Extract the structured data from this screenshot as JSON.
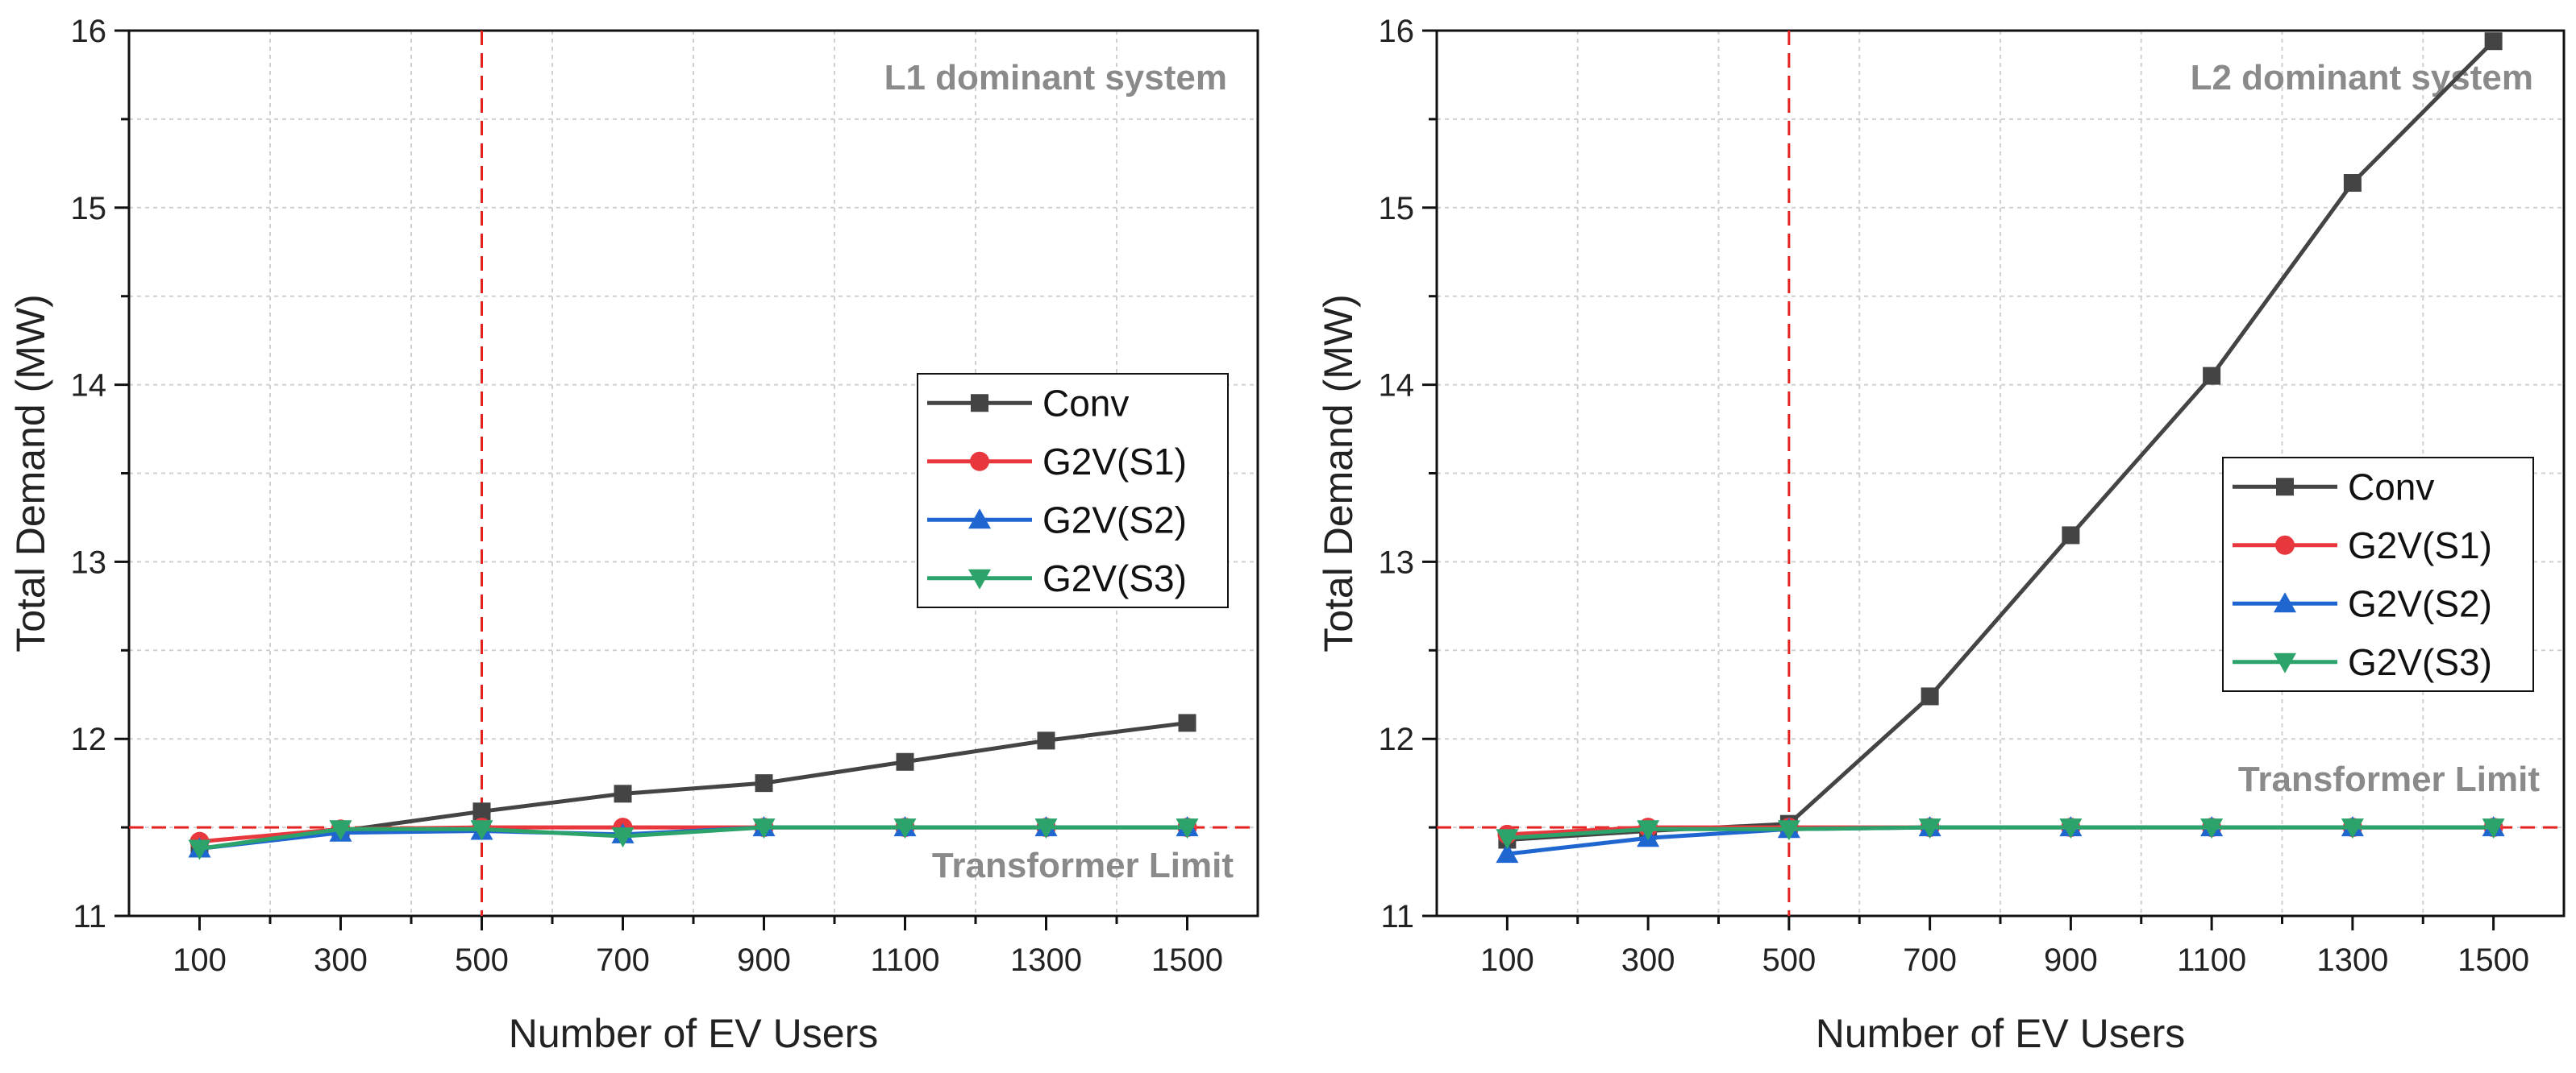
{
  "colors": {
    "Conv": "#444444",
    "G2V(S1)": "#e8383d",
    "G2V(S2)": "#1f66d1",
    "G2V(S3)": "#2ca36b",
    "reference_line": "#e52222",
    "grid": "#d0d0d0",
    "annotation": "#8a8a8a"
  },
  "chart_data": [
    {
      "type": "line",
      "annotation": "L1 dominant system",
      "limit_label": "Transformer Limit",
      "xlabel": "Number of EV Users",
      "ylabel": "Total Demand (MW)",
      "x": [
        100,
        300,
        500,
        700,
        900,
        1100,
        1300,
        1500
      ],
      "x_ticks": [
        "100",
        "300",
        "500",
        "700",
        "900",
        "1100",
        "1300",
        "1500"
      ],
      "y_ticks": [
        "11",
        "12",
        "13",
        "14",
        "15",
        "16"
      ],
      "xlim": [
        0,
        1600
      ],
      "ylim": [
        11,
        16
      ],
      "grid": true,
      "legend_position": "center-right",
      "reference_lines": {
        "horizontal_y": 11.5,
        "vertical_x": 500
      },
      "series": [
        {
          "name": "Conv",
          "marker": "square",
          "values": [
            11.38,
            11.48,
            11.59,
            11.69,
            11.75,
            11.87,
            11.99,
            12.09
          ]
        },
        {
          "name": "G2V(S1)",
          "marker": "circle",
          "values": [
            11.42,
            11.49,
            11.5,
            11.5,
            11.5,
            11.5,
            11.5,
            11.5
          ]
        },
        {
          "name": "G2V(S2)",
          "marker": "triangle-up",
          "values": [
            11.38,
            11.47,
            11.48,
            11.46,
            11.5,
            11.5,
            11.5,
            11.5
          ]
        },
        {
          "name": "G2V(S3)",
          "marker": "triangle-down",
          "values": [
            11.38,
            11.49,
            11.49,
            11.45,
            11.5,
            11.5,
            11.5,
            11.5
          ]
        }
      ]
    },
    {
      "type": "line",
      "annotation": "L2 dominant system",
      "limit_label": "Transformer Limit",
      "xlabel": "Number of EV Users",
      "ylabel": "Total Demand (MW)",
      "x": [
        100,
        300,
        500,
        700,
        900,
        1100,
        1300,
        1500
      ],
      "x_ticks": [
        "100",
        "300",
        "500",
        "700",
        "900",
        "1100",
        "1300",
        "1500"
      ],
      "y_ticks": [
        "11",
        "12",
        "13",
        "14",
        "15",
        "16"
      ],
      "xlim": [
        0,
        1600
      ],
      "ylim": [
        11,
        16
      ],
      "grid": true,
      "legend_position": "center-right",
      "reference_lines": {
        "horizontal_y": 11.5,
        "vertical_x": 500
      },
      "series": [
        {
          "name": "Conv",
          "marker": "square",
          "values": [
            11.43,
            11.48,
            11.52,
            12.24,
            13.15,
            14.05,
            15.14,
            15.94
          ]
        },
        {
          "name": "G2V(S1)",
          "marker": "circle",
          "values": [
            11.46,
            11.5,
            11.5,
            11.5,
            11.5,
            11.5,
            11.5,
            11.5
          ]
        },
        {
          "name": "G2V(S2)",
          "marker": "triangle-up",
          "values": [
            11.35,
            11.44,
            11.49,
            11.5,
            11.5,
            11.5,
            11.5,
            11.5
          ]
        },
        {
          "name": "G2V(S3)",
          "marker": "triangle-down",
          "values": [
            11.44,
            11.49,
            11.49,
            11.5,
            11.5,
            11.5,
            11.5,
            11.5
          ]
        }
      ]
    }
  ]
}
